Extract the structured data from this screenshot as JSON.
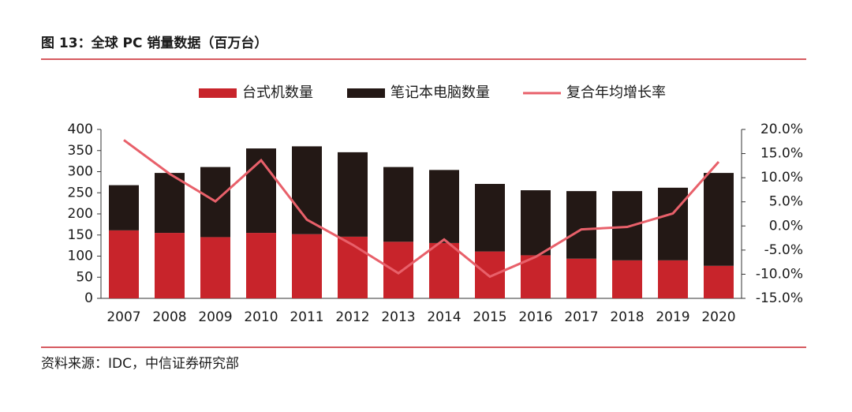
{
  "chart_data": {
    "type": "bar",
    "stacked": true,
    "title": "图 13：全球 PC 销量数据（百万台）",
    "source": "资料来源：IDC，中信证券研究部",
    "categories": [
      "2007",
      "2008",
      "2009",
      "2010",
      "2011",
      "2012",
      "2013",
      "2014",
      "2015",
      "2016",
      "2017",
      "2018",
      "2019",
      "2020"
    ],
    "series": [
      {
        "name": "台式机数量",
        "color": "#c8242b",
        "values": [
          161,
          155,
          145,
          155,
          152,
          146,
          134,
          131,
          111,
          102,
          94,
          90,
          90,
          77
        ]
      },
      {
        "name": "笔记本电脑数量",
        "color": "#231815",
        "values": [
          107,
          142,
          166,
          200,
          208,
          200,
          177,
          173,
          160,
          154,
          160,
          164,
          172,
          220
        ]
      },
      {
        "name": "复合年均增长率",
        "color": "#e8606a",
        "type": "line",
        "axis": "y2",
        "values": [
          17.8,
          10.8,
          5.1,
          13.6,
          1.3,
          -3.9,
          -9.8,
          -2.8,
          -10.5,
          -6.4,
          -0.7,
          -0.2,
          2.6,
          13.3
        ]
      }
    ],
    "ylim": [
      0,
      400
    ],
    "yticks": [
      0,
      50,
      100,
      150,
      200,
      250,
      300,
      350,
      400
    ],
    "y2lim": [
      -15,
      20
    ],
    "y2ticks": [
      {
        "value": -15,
        "label": "-15.0%"
      },
      {
        "value": -10,
        "label": "-10.0%"
      },
      {
        "value": -5,
        "label": "-5.0%"
      },
      {
        "value": 0,
        "label": "0.0%"
      },
      {
        "value": 5,
        "label": "5.0%"
      },
      {
        "value": 10,
        "label": "10.0%"
      },
      {
        "value": 15,
        "label": "15.0%"
      },
      {
        "value": 20,
        "label": "20.0%"
      }
    ],
    "grid": false,
    "legend": "top"
  }
}
